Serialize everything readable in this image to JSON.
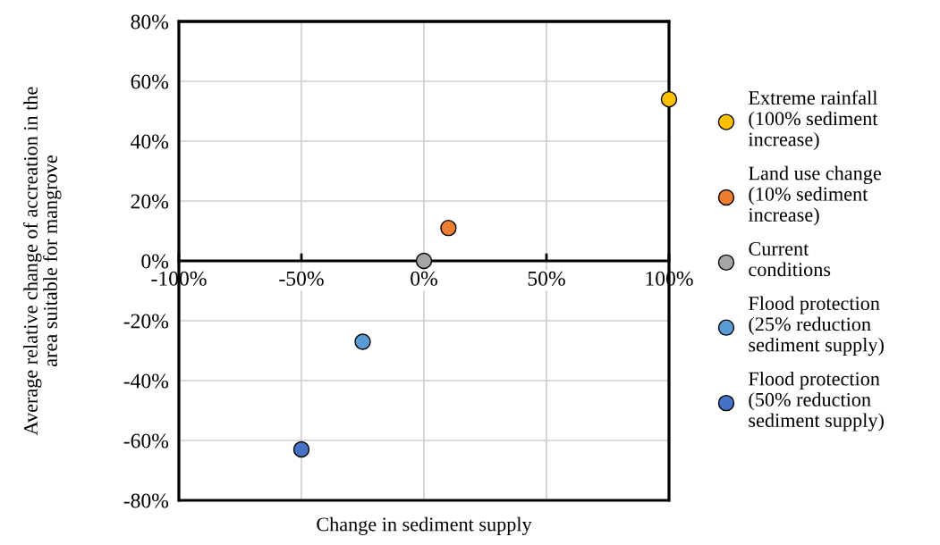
{
  "chart_data": {
    "type": "scatter",
    "xlabel": "Change in sediment supply",
    "ylabel": "Average relative change of accreation in the area suitable for mangrove",
    "series": [
      {
        "name": "Extreme rainfall (100% sediment increase)",
        "color": "#ffc000",
        "x": [
          100
        ],
        "values": [
          54
        ]
      },
      {
        "name": "Land use change (10% sediment increase)",
        "color": "#ed7d31",
        "x": [
          10
        ],
        "values": [
          11
        ]
      },
      {
        "name": "Current conditions",
        "color": "#a5a5a5",
        "x": [
          0
        ],
        "values": [
          0
        ]
      },
      {
        "name": "Flood protection (25% reduction sediment supply)",
        "color": "#5b9bd5",
        "x": [
          -25
        ],
        "values": [
          -27
        ]
      },
      {
        "name": "Flood protection (50% reduction sediment supply)",
        "color": "#4472c4",
        "x": [
          -50
        ],
        "values": [
          -63
        ]
      }
    ],
    "xlim": [
      -100,
      100
    ],
    "ylim": [
      -80,
      80
    ],
    "xticks": [
      {
        "value": -100,
        "label": "-100%"
      },
      {
        "value": -50,
        "label": "-50%"
      },
      {
        "value": 0,
        "label": "0%"
      },
      {
        "value": 50,
        "label": "50%"
      },
      {
        "value": 100,
        "label": "100%"
      }
    ],
    "yticks": [
      {
        "value": -80,
        "label": "-80%"
      },
      {
        "value": -60,
        "label": "-60%"
      },
      {
        "value": -40,
        "label": "-40%"
      },
      {
        "value": -20,
        "label": "-20%"
      },
      {
        "value": 0,
        "label": "0%"
      },
      {
        "value": 20,
        "label": "20%"
      },
      {
        "value": 40,
        "label": "40%"
      },
      {
        "value": 60,
        "label": "60%"
      },
      {
        "value": 80,
        "label": "80%"
      }
    ],
    "grid": true,
    "legend": "right",
    "marker": "circle"
  }
}
